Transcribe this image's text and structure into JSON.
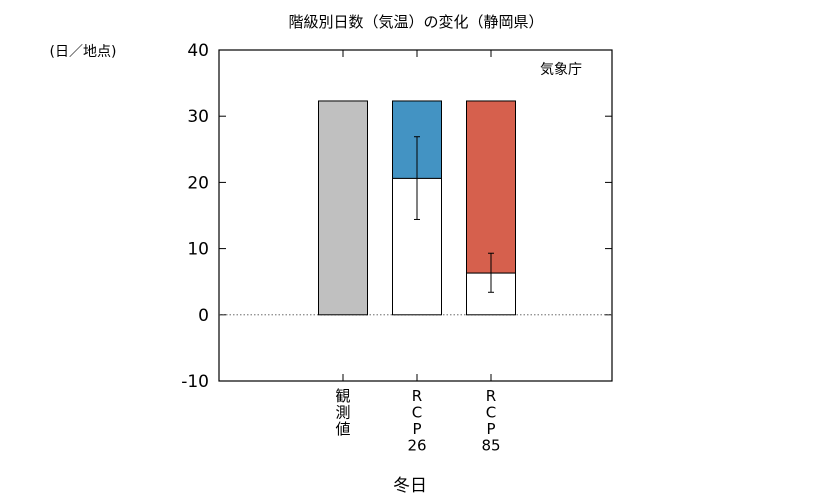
{
  "chart_data": {
    "type": "bar",
    "title": "階級別日数（気温）の変化（静岡県）",
    "ylabel": "(日／地点)",
    "xlabel": "冬日",
    "annotation": "気象庁",
    "ylim": [
      -10,
      40
    ],
    "yticks": [
      -10,
      0,
      10,
      20,
      30,
      40
    ],
    "grid": false,
    "zero_line": "dotted",
    "categories": [
      "観測値",
      "RCP26",
      "RCP85"
    ],
    "category_labels": [
      [
        "観",
        "測",
        "値"
      ],
      [
        "R",
        "C",
        "P",
        "26"
      ],
      [
        "R",
        "C",
        "P",
        "85"
      ]
    ],
    "bars": [
      {
        "category": "観測値",
        "observed": 32.3,
        "color": "#c0c0c0"
      },
      {
        "category": "RCP26",
        "future": 20.6,
        "change": -11.7,
        "color": "#4393c3",
        "error": [
          14.4,
          26.9
        ]
      },
      {
        "category": "RCP85",
        "future": 6.3,
        "change": -26.0,
        "color": "#d6604d",
        "error": [
          3.4,
          9.3
        ]
      }
    ]
  }
}
